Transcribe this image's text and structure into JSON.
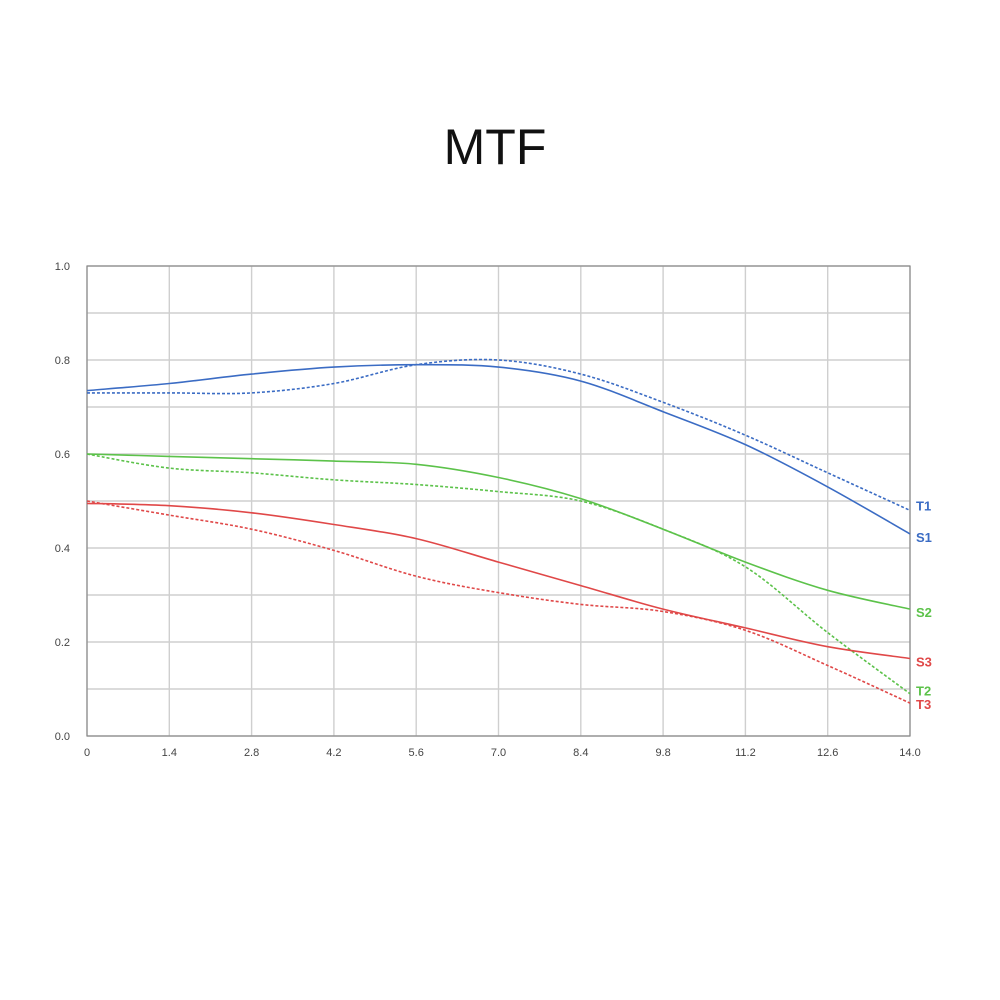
{
  "chart_data": {
    "type": "line",
    "title": "MTF",
    "xlim": [
      0,
      14
    ],
    "ylim": [
      0,
      1
    ],
    "x_ticks": [
      "0",
      "1.4",
      "2.8",
      "4.2",
      "5.6",
      "7.0",
      "8.4",
      "9.8",
      "11.2",
      "12.6",
      "14.0"
    ],
    "y_ticks": [
      "0.0",
      "0.2",
      "0.4",
      "0.6",
      "0.8",
      "1.0"
    ],
    "grid": true,
    "series": [
      {
        "name": "T1",
        "style": "dashed",
        "color": "#3b6cc4",
        "x": [
          0,
          1.4,
          2.8,
          4.2,
          5.6,
          7.0,
          8.4,
          9.8,
          11.2,
          12.6,
          14.0
        ],
        "y": [
          0.73,
          0.73,
          0.73,
          0.75,
          0.79,
          0.8,
          0.77,
          0.71,
          0.64,
          0.56,
          0.48
        ]
      },
      {
        "name": "S1",
        "style": "solid",
        "color": "#3b6cc4",
        "x": [
          0,
          1.4,
          2.8,
          4.2,
          5.6,
          7.0,
          8.4,
          9.8,
          11.2,
          12.6,
          14.0
        ],
        "y": [
          0.735,
          0.75,
          0.77,
          0.785,
          0.79,
          0.785,
          0.755,
          0.69,
          0.62,
          0.53,
          0.43
        ]
      },
      {
        "name": "T2",
        "style": "dashed",
        "color": "#5cc24a",
        "x": [
          0,
          1.4,
          2.8,
          4.2,
          5.6,
          7.0,
          8.4,
          9.8,
          11.2,
          12.6,
          14.0
        ],
        "y": [
          0.6,
          0.57,
          0.56,
          0.545,
          0.535,
          0.52,
          0.5,
          0.44,
          0.36,
          0.22,
          0.09
        ]
      },
      {
        "name": "S2",
        "style": "solid",
        "color": "#5cc24a",
        "x": [
          0,
          1.4,
          2.8,
          4.2,
          5.6,
          7.0,
          8.4,
          9.8,
          11.2,
          12.6,
          14.0
        ],
        "y": [
          0.6,
          0.595,
          0.59,
          0.585,
          0.578,
          0.55,
          0.505,
          0.44,
          0.37,
          0.31,
          0.27
        ]
      },
      {
        "name": "T3",
        "style": "dashed",
        "color": "#e04848",
        "x": [
          0,
          1.4,
          2.8,
          4.2,
          5.6,
          7.0,
          8.4,
          9.8,
          11.2,
          12.6,
          14.0
        ],
        "y": [
          0.5,
          0.47,
          0.44,
          0.395,
          0.34,
          0.305,
          0.28,
          0.265,
          0.225,
          0.15,
          0.07
        ]
      },
      {
        "name": "S3",
        "style": "solid",
        "color": "#e04848",
        "x": [
          0,
          1.4,
          2.8,
          4.2,
          5.6,
          7.0,
          8.4,
          9.8,
          11.2,
          12.6,
          14.0
        ],
        "y": [
          0.495,
          0.49,
          0.475,
          0.45,
          0.42,
          0.37,
          0.32,
          0.27,
          0.23,
          0.19,
          0.165
        ]
      }
    ]
  }
}
